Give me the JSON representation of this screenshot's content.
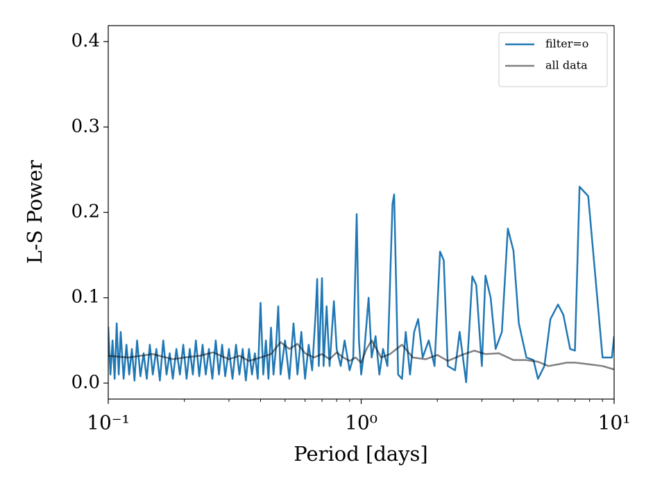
{
  "chart_data": {
    "type": "line",
    "xlabel": "Period [days]",
    "ylabel": "L-S Power",
    "xscale": "log",
    "xlim": [
      0.1,
      10
    ],
    "xticks": [
      {
        "value": 0.1,
        "label": "10⁻¹"
      },
      {
        "value": 1,
        "label": "10⁰"
      },
      {
        "value": 10,
        "label": "10¹"
      }
    ],
    "xminorticks": [
      0.2,
      0.3,
      0.4,
      0.5,
      0.6,
      0.7,
      0.8,
      0.9,
      2,
      3,
      4,
      5,
      6,
      7,
      8,
      9
    ],
    "ylim": [
      -0.0187,
      0.4187
    ],
    "yticks": [
      {
        "value": 0,
        "label": "0.0"
      },
      0.1,
      0.2,
      0.3,
      0.4
    ],
    "legend": "upper right",
    "series": [
      {
        "name": "filter=o",
        "color": "#1f77b4",
        "alpha": 1,
        "x": [
          0.1,
          0.102,
          0.104,
          0.106,
          0.108,
          0.11,
          0.112,
          0.115,
          0.118,
          0.121,
          0.124,
          0.127,
          0.13,
          0.134,
          0.138,
          0.142,
          0.146,
          0.15,
          0.155,
          0.16,
          0.165,
          0.17,
          0.175,
          0.18,
          0.186,
          0.192,
          0.198,
          0.204,
          0.21,
          0.216,
          0.222,
          0.229,
          0.236,
          0.243,
          0.25,
          0.258,
          0.266,
          0.274,
          0.282,
          0.29,
          0.3,
          0.31,
          0.32,
          0.33,
          0.34,
          0.35,
          0.36,
          0.37,
          0.38,
          0.39,
          0.4,
          0.41,
          0.42,
          0.43,
          0.44,
          0.45,
          0.46,
          0.47,
          0.48,
          0.5,
          0.52,
          0.54,
          0.56,
          0.58,
          0.6,
          0.62,
          0.64,
          0.66,
          0.67,
          0.68,
          0.7,
          0.71,
          0.73,
          0.75,
          0.78,
          0.8,
          0.83,
          0.86,
          0.9,
          0.93,
          0.96,
          0.98,
          1.0,
          1.03,
          1.07,
          1.1,
          1.14,
          1.18,
          1.22,
          1.27,
          1.33,
          1.35,
          1.4,
          1.45,
          1.5,
          1.56,
          1.62,
          1.68,
          1.75,
          1.85,
          1.95,
          2.05,
          2.12,
          2.2,
          2.35,
          2.45,
          2.6,
          2.75,
          2.85,
          3.0,
          3.1,
          3.25,
          3.4,
          3.6,
          3.8,
          4.0,
          4.2,
          4.5,
          4.8,
          5.0,
          5.3,
          5.6,
          6.0,
          6.3,
          6.7,
          7.0,
          7.3,
          7.9,
          9.0,
          9.8,
          10
        ],
        "values": [
          0.066,
          0.01,
          0.05,
          0.005,
          0.07,
          0.01,
          0.06,
          0.005,
          0.045,
          0.01,
          0.04,
          0.003,
          0.05,
          0.008,
          0.035,
          0.005,
          0.045,
          0.01,
          0.04,
          0.003,
          0.05,
          0.01,
          0.035,
          0.005,
          0.04,
          0.01,
          0.045,
          0.005,
          0.04,
          0.01,
          0.05,
          0.008,
          0.045,
          0.01,
          0.04,
          0.005,
          0.05,
          0.01,
          0.045,
          0.008,
          0.04,
          0.005,
          0.045,
          0.01,
          0.04,
          0.003,
          0.04,
          0.01,
          0.035,
          0.005,
          0.094,
          0.01,
          0.05,
          0.005,
          0.065,
          0.01,
          0.04,
          0.09,
          0.01,
          0.05,
          0.005,
          0.07,
          0.01,
          0.06,
          0.005,
          0.045,
          0.015,
          0.08,
          0.122,
          0.02,
          0.123,
          0.02,
          0.09,
          0.02,
          0.096,
          0.04,
          0.02,
          0.05,
          0.015,
          0.03,
          0.198,
          0.05,
          0.01,
          0.04,
          0.1,
          0.03,
          0.055,
          0.01,
          0.04,
          0.02,
          0.21,
          0.221,
          0.01,
          0.005,
          0.06,
          0.01,
          0.06,
          0.075,
          0.03,
          0.05,
          0.02,
          0.154,
          0.144,
          0.02,
          0.015,
          0.06,
          0.001,
          0.125,
          0.115,
          0.02,
          0.126,
          0.1,
          0.04,
          0.06,
          0.181,
          0.155,
          0.07,
          0.03,
          0.027,
          0.005,
          0.02,
          0.075,
          0.092,
          0.08,
          0.04,
          0.038,
          0.23,
          0.219,
          0.03,
          0.03,
          0.055
        ]
      },
      {
        "name": "all data",
        "color": "#000000",
        "alpha": 0.5,
        "x": [
          0.1,
          0.12,
          0.15,
          0.18,
          0.2,
          0.23,
          0.26,
          0.3,
          0.33,
          0.36,
          0.4,
          0.44,
          0.48,
          0.52,
          0.56,
          0.6,
          0.65,
          0.7,
          0.75,
          0.8,
          0.85,
          0.9,
          0.95,
          1.0,
          1.05,
          1.1,
          1.2,
          1.3,
          1.45,
          1.6,
          1.8,
          2.0,
          2.2,
          2.5,
          2.8,
          3.1,
          3.5,
          4.0,
          4.5,
          5.0,
          5.5,
          6.0,
          6.5,
          7.0,
          8.0,
          9.0,
          10
        ],
        "values": [
          0.032,
          0.03,
          0.034,
          0.028,
          0.03,
          0.032,
          0.036,
          0.028,
          0.032,
          0.026,
          0.03,
          0.034,
          0.048,
          0.04,
          0.046,
          0.035,
          0.03,
          0.034,
          0.028,
          0.036,
          0.03,
          0.026,
          0.03,
          0.024,
          0.04,
          0.05,
          0.03,
          0.034,
          0.045,
          0.03,
          0.028,
          0.033,
          0.026,
          0.033,
          0.038,
          0.034,
          0.035,
          0.027,
          0.027,
          0.025,
          0.02,
          0.022,
          0.024,
          0.024,
          0.022,
          0.02,
          0.016
        ]
      }
    ]
  }
}
